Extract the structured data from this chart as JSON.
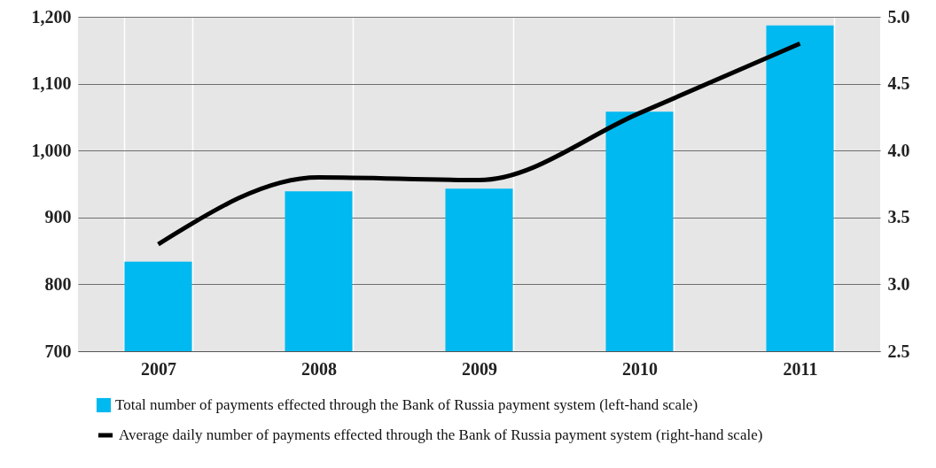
{
  "chart_data": {
    "type": "bar",
    "categories": [
      "2007",
      "2008",
      "2009",
      "2010",
      "2011"
    ],
    "series": [
      {
        "name": "Total number of payments effected through the Bank of Russia payment system (left-hand scale)",
        "color": "#00b9f0",
        "values": [
          834,
          939,
          943,
          1058,
          1187
        ]
      },
      {
        "name": "Average daily number of payments effected through the Bank of Russia payment system (right-hand scale)",
        "type": "line",
        "axis": "y2",
        "color": "#000000",
        "values": [
          3.3,
          3.8,
          3.78,
          4.28,
          4.8
        ]
      }
    ],
    "ylim": [
      700,
      1200
    ],
    "yticks": [
      {
        "value": 700,
        "label": "700"
      },
      {
        "value": 800,
        "label": "800"
      },
      {
        "value": 900,
        "label": "900"
      },
      {
        "value": 1000,
        "label": "1,000"
      },
      {
        "value": 1100,
        "label": "1,100"
      },
      {
        "value": 1200,
        "label": "1,200"
      }
    ],
    "y2lim": [
      2.5,
      5
    ],
    "y2ticks": [
      {
        "value": 2.5,
        "label": "2.5"
      },
      {
        "value": 3,
        "label": "3.0"
      },
      {
        "value": 3.5,
        "label": "3.5"
      },
      {
        "value": 4,
        "label": "4.0"
      },
      {
        "value": 4.5,
        "label": "4.5"
      },
      {
        "value": 5,
        "label": "5.0"
      }
    ],
    "grid": true,
    "legend": "bottom",
    "marker": "none",
    "line_style": "solid"
  }
}
